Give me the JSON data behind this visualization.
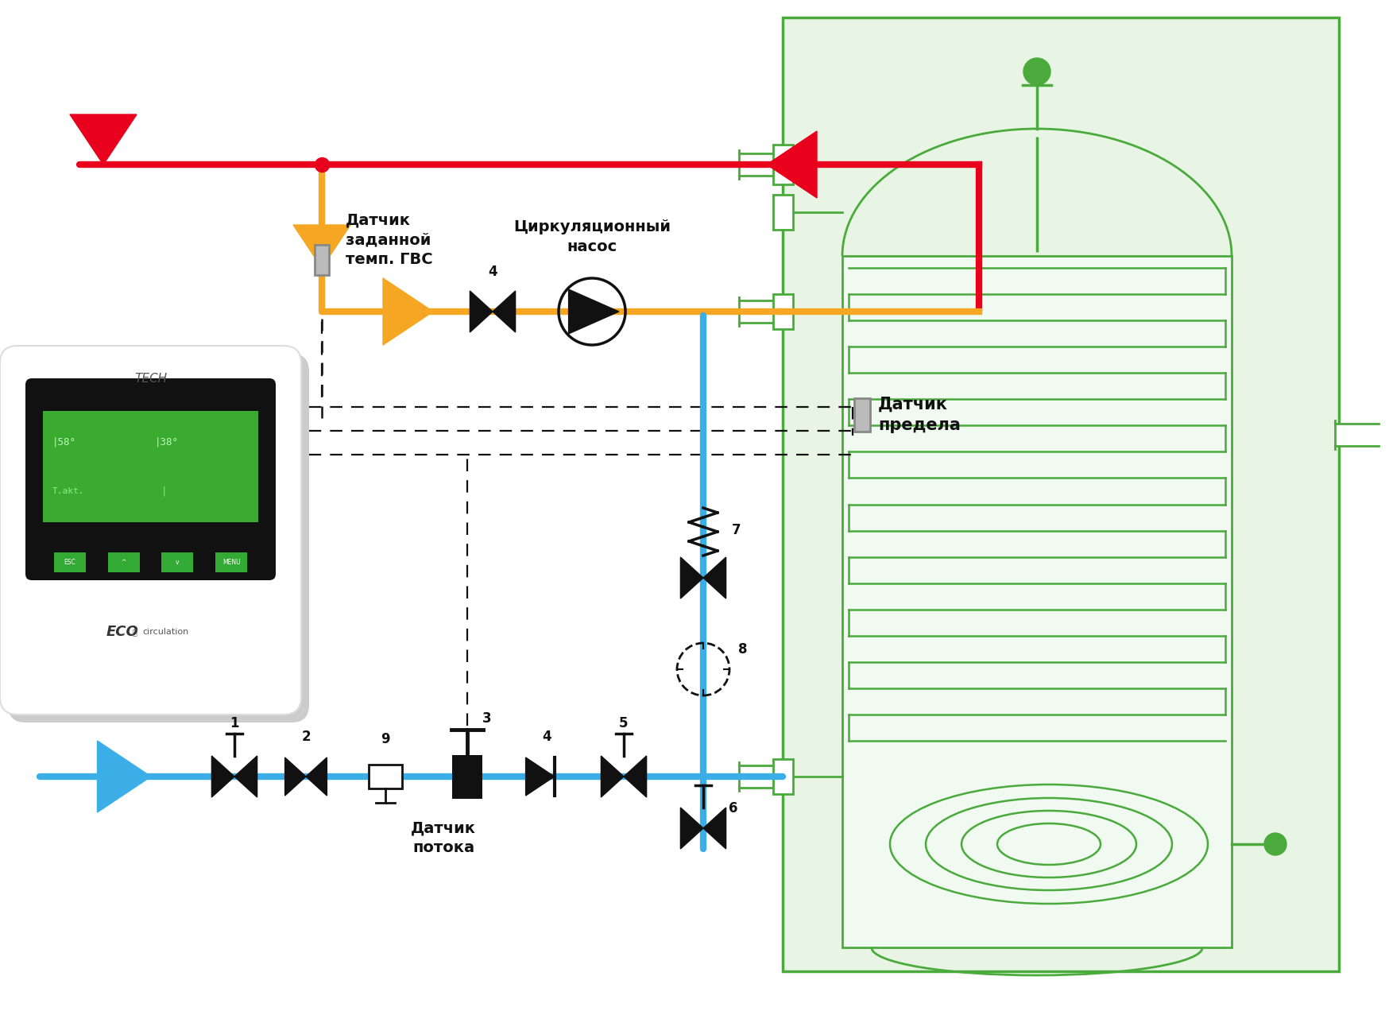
{
  "bg_color": "#ffffff",
  "red_color": "#e8001c",
  "orange_color": "#f5a623",
  "blue_color": "#3baee8",
  "green_color": "#4aaa3c",
  "green_light": "#e8f5e4",
  "black_color": "#111111",
  "gray_color": "#aaaaaa",
  "label_datchik_zadannoy": "Датчик\nзаданной\nтемп. ГВС",
  "label_tsirk_nasos": "Циркуляционный\nнасос",
  "label_datchik_predela": "Датчик\nпредела",
  "label_datchik_potoka": "Датчик\nпотока"
}
